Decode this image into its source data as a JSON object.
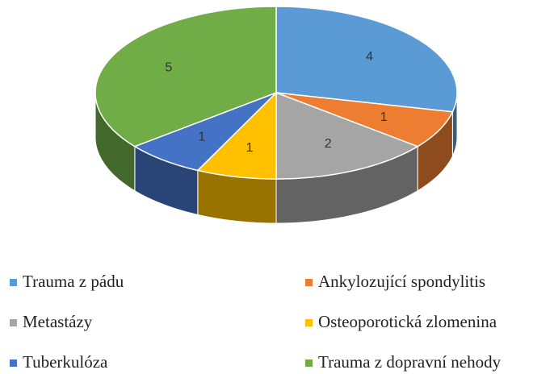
{
  "chart_data": {
    "type": "pie",
    "categories": [
      "Trauma z pádu",
      "Ankylozující spondylitis",
      "Metastázy",
      "Osteoporotická zlomenina",
      "Tuberkulóza",
      "Trauma z dopravní nehody"
    ],
    "values": [
      4,
      1,
      2,
      1,
      1,
      5
    ],
    "colors": [
      "#5b9bd5",
      "#ed7d31",
      "#a5a5a5",
      "#ffc000",
      "#4472c4",
      "#70ad47"
    ],
    "legend": "bottom"
  }
}
